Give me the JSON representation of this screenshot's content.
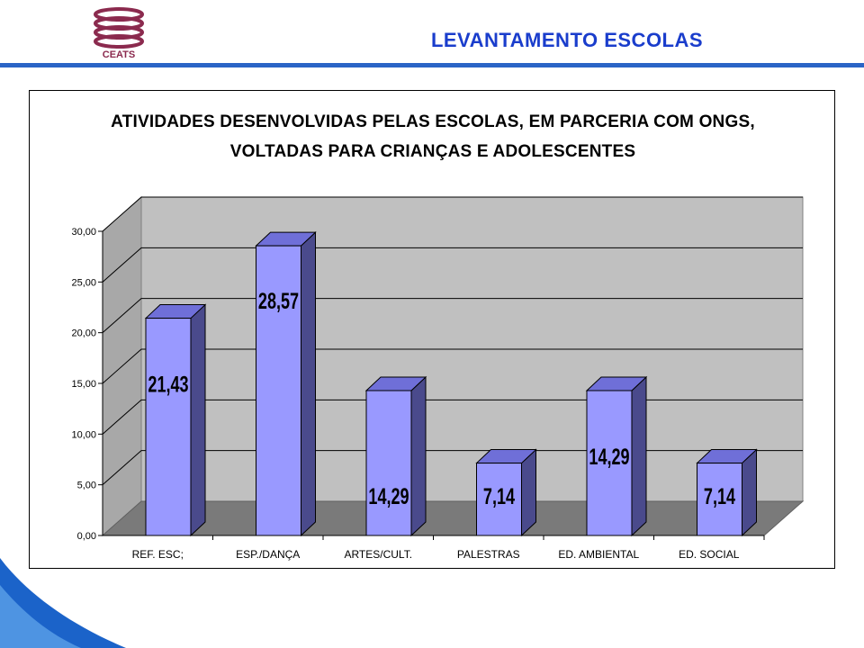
{
  "header": {
    "logo_text": "CEATS",
    "title": "LEVANTAMENTO ESCOLAS"
  },
  "colors": {
    "header_title": "#1a3dcc",
    "rule": "#2a64c6",
    "bar_front": "#9999ff",
    "bar_top": "#6f6fd8",
    "bar_side": "#4a4a8c",
    "wall": "#c0c0c0",
    "floor": "#7a7a7a"
  },
  "chart_data": {
    "type": "bar",
    "title_line1": "ATIVIDADES DESENVOLVIDAS PELAS ESCOLAS, EM PARCERIA COM ONGS,",
    "title_line2": "VOLTADAS PARA CRIANÇAS E ADOLESCENTES",
    "categories": [
      "REF. ESC;",
      "ESP./DANÇA",
      "ARTES/CULT.",
      "PALESTRAS",
      "ED. AMBIENTAL",
      "ED. SOCIAL"
    ],
    "values": [
      21.43,
      28.57,
      14.29,
      7.14,
      14.29,
      7.14
    ],
    "data_labels": [
      "21,43",
      "28,57",
      "14,29",
      "7,14",
      "14,29",
      "7,14"
    ],
    "y_ticks": [
      "0,00",
      "5,00",
      "10,00",
      "15,00",
      "20,00",
      "25,00",
      "30,00"
    ],
    "ylim": [
      0,
      30
    ],
    "grid": true,
    "legend": "none",
    "style": "3d"
  }
}
